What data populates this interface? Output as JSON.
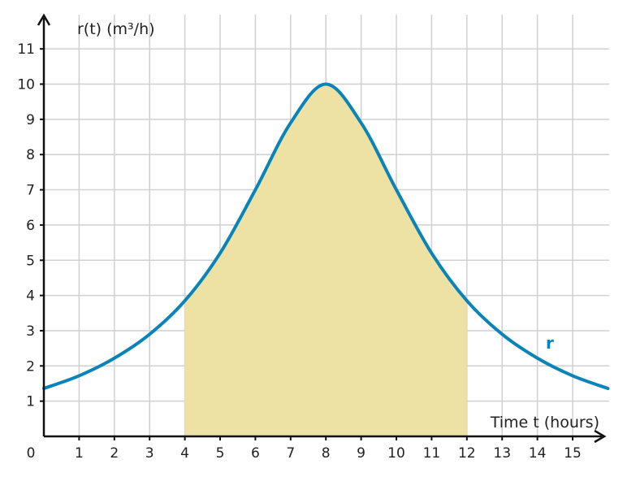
{
  "chart_data": {
    "type": "line",
    "title": "",
    "xlabel": "Time t (hours)",
    "ylabel": "r(t) (m³/h)",
    "xlim": [
      0,
      16
    ],
    "ylim": [
      0,
      11
    ],
    "grid": true,
    "x_ticks": [
      "0",
      "1",
      "2",
      "3",
      "4",
      "5",
      "6",
      "7",
      "8",
      "9",
      "10",
      "11",
      "12",
      "13",
      "14",
      "15"
    ],
    "y_ticks": [
      "1",
      "2",
      "3",
      "4",
      "5",
      "6",
      "7",
      "8",
      "9",
      "10",
      "11"
    ],
    "series": [
      {
        "name": "r",
        "color": "#0a84b8",
        "x": [
          0,
          1,
          2,
          3,
          4,
          5,
          6,
          7,
          8,
          9,
          10,
          11,
          12,
          13,
          14,
          15,
          16
        ],
        "y": [
          1.36,
          1.72,
          2.22,
          2.9,
          3.85,
          5.2,
          7.0,
          8.9,
          10.0,
          8.9,
          7.0,
          5.2,
          3.85,
          2.9,
          2.22,
          1.72,
          1.36
        ]
      }
    ],
    "shaded_region": {
      "x_start": 4,
      "x_end": 12,
      "color": "#ede2a4"
    }
  }
}
